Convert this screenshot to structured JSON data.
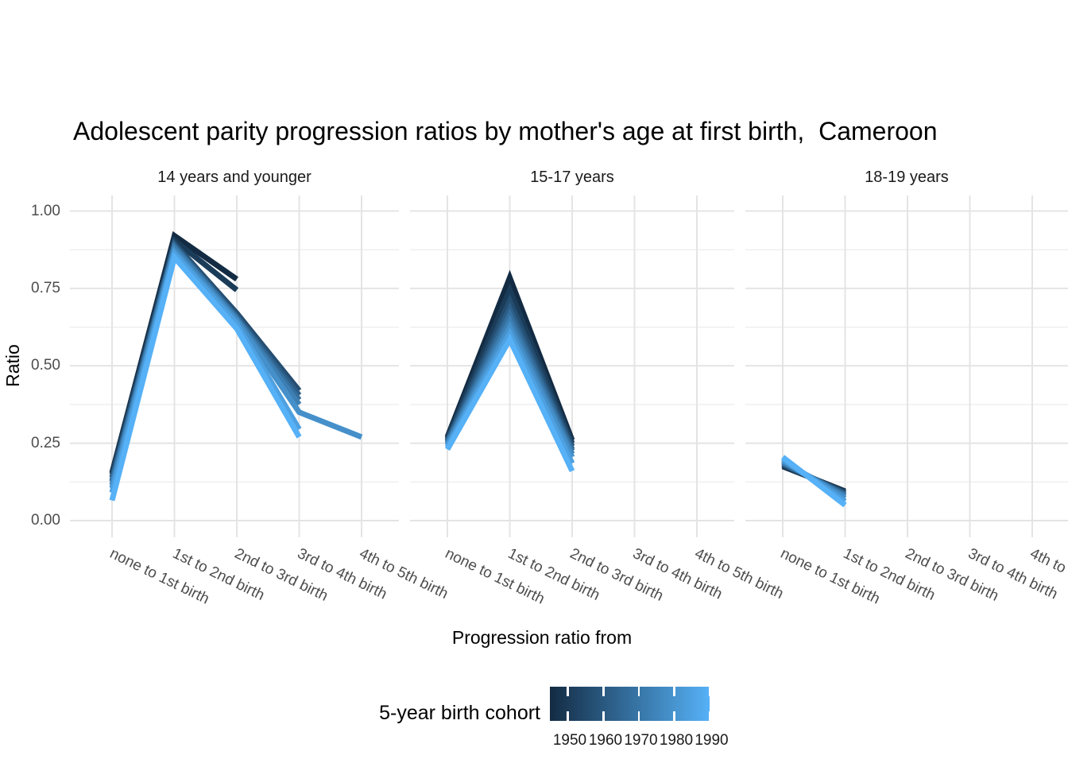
{
  "title": "Adolescent parity progression ratios by mother's age at first birth,  Cameroon",
  "chart_data": {
    "type": "line",
    "title": "Adolescent parity progression ratios by mother's age at first birth,  Cameroon",
    "xlabel": "Progression ratio from",
    "ylabel": "Ratio",
    "ylim": [
      0,
      1
    ],
    "grid": true,
    "legend_position": "bottom",
    "y_tick_labels": [
      "1.00",
      "0.75",
      "0.50",
      "0.25",
      "0.00"
    ],
    "y_tick_values": [
      1.0,
      0.75,
      0.5,
      0.25,
      0.0
    ],
    "y_minor_values": [
      0.875,
      0.625,
      0.375,
      0.125
    ],
    "categories": [
      "none to 1st birth",
      "1st to 2nd birth",
      "2nd to 3rd birth",
      "3rd to 4th birth",
      "4th to 5th birth"
    ],
    "color_scale": {
      "title": "5-year birth cohort",
      "low": "#132B43",
      "high": "#56B1F7",
      "tick_labels": [
        "1950",
        "1960",
        "1970",
        "1980",
        "1990"
      ]
    },
    "facets": [
      {
        "label": "14 years and younger",
        "series": [
          {
            "name": "1950",
            "color": "#132B43",
            "values": [
              0.155,
              0.92,
              0.78,
              null,
              null
            ]
          },
          {
            "name": "1955",
            "color": "#1B3C59",
            "values": [
              0.15,
              0.905,
              0.745,
              null,
              null
            ]
          },
          {
            "name": "1960",
            "color": "#244D70",
            "values": [
              0.14,
              0.895,
              0.67,
              0.42,
              null
            ]
          },
          {
            "name": "1965",
            "color": "#2C5D86",
            "values": [
              0.13,
              0.89,
              0.66,
              0.405,
              null
            ]
          },
          {
            "name": "1970",
            "color": "#346E9D",
            "values": [
              0.125,
              0.885,
              0.655,
              0.39,
              null
            ]
          },
          {
            "name": "1975",
            "color": "#3D7FB3",
            "values": [
              0.115,
              0.88,
              0.65,
              0.375,
              null
            ]
          },
          {
            "name": "1980",
            "color": "#4590CA",
            "values": [
              0.105,
              0.87,
              0.645,
              0.35,
              0.27
            ]
          },
          {
            "name": "1985",
            "color": "#4EA0E0",
            "values": [
              0.09,
              0.862,
              0.635,
              0.295,
              null
            ]
          },
          {
            "name": "1990",
            "color": "#56B1F7",
            "values": [
              0.065,
              0.85,
              0.62,
              0.27,
              null
            ]
          }
        ]
      },
      {
        "label": "15-17 years",
        "series": [
          {
            "name": "1950",
            "color": "#132B43",
            "values": [
              0.27,
              0.785,
              0.26,
              null,
              null
            ]
          },
          {
            "name": "1955",
            "color": "#1B3C59",
            "values": [
              0.265,
              0.745,
              0.25,
              null,
              null
            ]
          },
          {
            "name": "1960",
            "color": "#244D70",
            "values": [
              0.26,
              0.71,
              0.24,
              null,
              null
            ]
          },
          {
            "name": "1965",
            "color": "#2C5D86",
            "values": [
              0.256,
              0.685,
              0.23,
              null,
              null
            ]
          },
          {
            "name": "1970",
            "color": "#346E9D",
            "values": [
              0.252,
              0.665,
              0.225,
              null,
              null
            ]
          },
          {
            "name": "1975",
            "color": "#3D7FB3",
            "values": [
              0.248,
              0.645,
              0.215,
              null,
              null
            ]
          },
          {
            "name": "1980",
            "color": "#4590CA",
            "values": [
              0.243,
              0.625,
              0.205,
              null,
              null
            ]
          },
          {
            "name": "1985",
            "color": "#4EA0E0",
            "values": [
              0.237,
              0.605,
              0.185,
              null,
              null
            ]
          },
          {
            "name": "1990",
            "color": "#56B1F7",
            "values": [
              0.23,
              0.585,
              0.16,
              null,
              null
            ]
          }
        ]
      },
      {
        "label": "18-19 years",
        "series": [
          {
            "name": "1950",
            "color": "#132B43",
            "values": [
              0.175,
              0.095,
              null,
              null,
              null
            ]
          },
          {
            "name": "1955",
            "color": "#1B3C59",
            "values": [
              0.178,
              0.092,
              null,
              null,
              null
            ]
          },
          {
            "name": "1960",
            "color": "#244D70",
            "values": [
              0.181,
              0.089,
              null,
              null,
              null
            ]
          },
          {
            "name": "1965",
            "color": "#2C5D86",
            "values": [
              0.184,
              0.086,
              null,
              null,
              null
            ]
          },
          {
            "name": "1970",
            "color": "#346E9D",
            "values": [
              0.187,
              0.082,
              null,
              null,
              null
            ]
          },
          {
            "name": "1975",
            "color": "#3D7FB3",
            "values": [
              0.19,
              0.078,
              null,
              null,
              null
            ]
          },
          {
            "name": "1980",
            "color": "#4590CA",
            "values": [
              0.194,
              0.072,
              null,
              null,
              null
            ]
          },
          {
            "name": "1985",
            "color": "#4EA0E0",
            "values": [
              0.199,
              0.062,
              null,
              null,
              null
            ]
          },
          {
            "name": "1990",
            "color": "#56B1F7",
            "values": [
              0.205,
              0.05,
              null,
              null,
              null
            ]
          }
        ]
      }
    ]
  },
  "legend": {
    "title": "5-year birth cohort",
    "labels": [
      "1950",
      "1960",
      "1970",
      "1980",
      "1990"
    ],
    "gradient_low": "#132B43",
    "gradient_mid": "#346E9D",
    "gradient_high": "#56B1F7"
  }
}
